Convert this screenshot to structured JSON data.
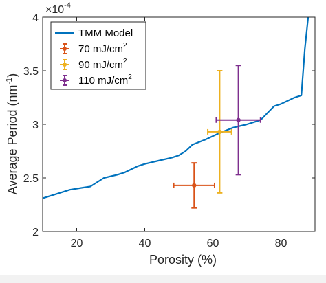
{
  "chart_data": {
    "type": "scatter",
    "title": "",
    "xlabel": "Porosity (%)",
    "ylabel": "Average Period (nm",
    "ylabel_sup": "-1",
    "ylabel_close": ")",
    "xlim": [
      10,
      90
    ],
    "ylim": [
      2.0,
      4.0
    ],
    "x_ticks": [
      20,
      40,
      60,
      80
    ],
    "y_ticks": [
      2,
      2.5,
      3,
      3.5,
      4
    ],
    "y_tick_labels": [
      "2",
      "2.5",
      "3",
      "3.5",
      "4"
    ],
    "y_exponent_base": "×10",
    "y_exponent_power": "-4",
    "grid": false,
    "legend_position": "top-left",
    "model": {
      "name": "TMM Model",
      "color": "#0072BD",
      "x": [
        10,
        14,
        18,
        22,
        24,
        28,
        32,
        34,
        38,
        40,
        44,
        48,
        50,
        52,
        54,
        58,
        62,
        66,
        70,
        74,
        78,
        80,
        84,
        86,
        87,
        88
      ],
      "y": [
        2.31,
        2.35,
        2.39,
        2.41,
        2.42,
        2.5,
        2.53,
        2.55,
        2.61,
        2.63,
        2.66,
        2.69,
        2.71,
        2.75,
        2.81,
        2.86,
        2.92,
        2.97,
        3.0,
        3.04,
        3.17,
        3.19,
        3.25,
        3.27,
        3.7,
        4.0
      ]
    },
    "series": [
      {
        "name": "70 mJ/cm",
        "sup": "2",
        "color": "#D95319",
        "x": 54.5,
        "y": 2.43,
        "xerr": 6.0,
        "yerr": 0.21
      },
      {
        "name": "90 mJ/cm",
        "sup": "2",
        "color": "#EDB120",
        "x": 62.0,
        "y": 2.93,
        "xerr": 3.5,
        "yerr": 0.57
      },
      {
        "name": "110 mJ/cm",
        "sup": "2",
        "color": "#7E2F8E",
        "x": 67.5,
        "y": 3.04,
        "xerr": 6.5,
        "yerr": 0.51
      }
    ]
  }
}
